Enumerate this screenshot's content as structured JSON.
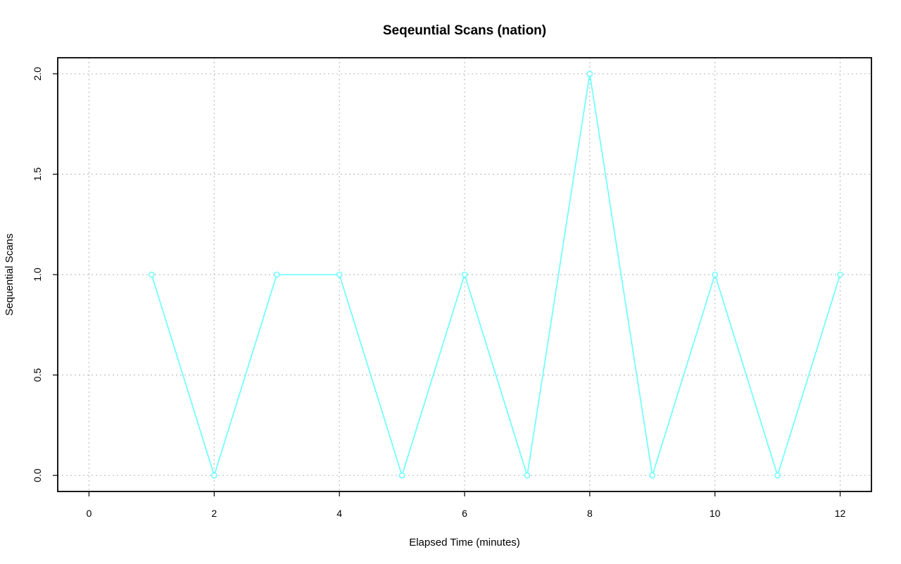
{
  "chart_data": {
    "type": "line",
    "title": "Seqeuntial Scans (nation)",
    "xlabel": "Elapsed Time (minutes)",
    "ylabel": "Sequential Scans",
    "xlim": [
      -0.5,
      12.5
    ],
    "ylim": [
      -0.08,
      2.08
    ],
    "x_ticks": [
      0,
      2,
      4,
      6,
      8,
      10,
      12
    ],
    "x_tick_labels": [
      "0",
      "2",
      "4",
      "6",
      "8",
      "10",
      "12"
    ],
    "y_ticks": [
      0.0,
      0.5,
      1.0,
      1.5,
      2.0
    ],
    "y_tick_labels": [
      "0.0",
      "0.5",
      "1.0",
      "1.5",
      "2.0"
    ],
    "grid": true,
    "series": [
      {
        "color": "#66ffff",
        "marker": "circle",
        "x": [
          1,
          2,
          3,
          4,
          5,
          6,
          7,
          8,
          9,
          10,
          11,
          12
        ],
        "values": [
          1,
          0,
          1,
          1,
          0,
          1,
          0,
          2,
          0,
          1,
          0,
          1
        ]
      }
    ]
  }
}
